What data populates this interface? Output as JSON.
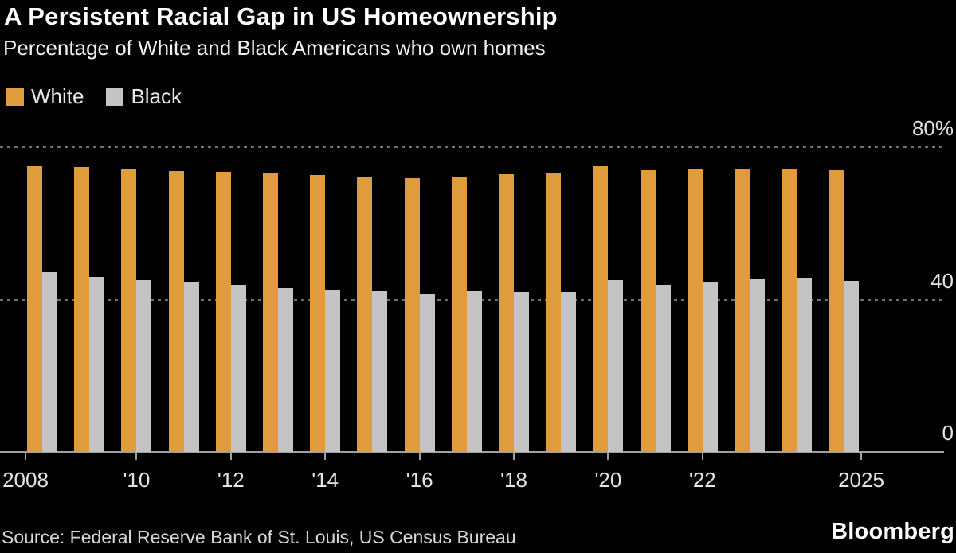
{
  "header": {
    "title": "A Persistent Racial Gap in US Homeownership",
    "subtitle": "Percentage of White and Black Americans who own homes"
  },
  "legend": {
    "items": [
      {
        "label": "White",
        "color": "#E09B3D"
      },
      {
        "label": "Black",
        "color": "#C4C4C4"
      }
    ]
  },
  "footer": {
    "source": "Source: Federal Reserve Bank of St. Louis, US Census Bureau",
    "brand": "Bloomberg"
  },
  "chart_data": {
    "type": "bar",
    "title": "A Persistent Racial Gap in US Homeownership",
    "subtitle": "Percentage of White and Black Americans who own homes",
    "categories": [
      2008,
      2009,
      2010,
      2011,
      2012,
      2013,
      2014,
      2015,
      2016,
      2017,
      2018,
      2019,
      2020,
      2021,
      2022,
      2023,
      2024,
      2025
    ],
    "series": [
      {
        "name": "White",
        "color": "#E09B3D",
        "values": [
          75.0,
          74.8,
          74.4,
          73.8,
          73.5,
          73.3,
          72.6,
          72.0,
          71.9,
          72.3,
          72.9,
          73.3,
          75.0,
          73.9,
          74.4,
          74.2,
          74.2,
          74.0
        ]
      },
      {
        "name": "Black",
        "color": "#C4C4C4",
        "values": [
          47.3,
          46.0,
          45.2,
          44.7,
          43.8,
          43.0,
          42.6,
          42.3,
          41.5,
          42.1,
          41.9,
          41.9,
          45.1,
          43.9,
          44.8,
          45.4,
          45.6,
          44.9
        ]
      }
    ],
    "ylim": [
      0,
      80
    ],
    "yticks": [
      {
        "value": 80,
        "label": "80%"
      },
      {
        "value": 40,
        "label": "40"
      },
      {
        "value": 0,
        "label": "0"
      }
    ],
    "xticks": [
      {
        "year": 2008,
        "label": "2008"
      },
      {
        "year": 2010,
        "label": "'10"
      },
      {
        "year": 2012,
        "label": "'12"
      },
      {
        "year": 2014,
        "label": "'14"
      },
      {
        "year": 2016,
        "label": "'16"
      },
      {
        "year": 2018,
        "label": "'18"
      },
      {
        "year": 2020,
        "label": "'20"
      },
      {
        "year": 2022,
        "label": "'22"
      },
      {
        "year": 2025,
        "label": "2025"
      }
    ],
    "grid": "horizontal-dashed",
    "legend_position": "top-left",
    "background": "#000000"
  }
}
